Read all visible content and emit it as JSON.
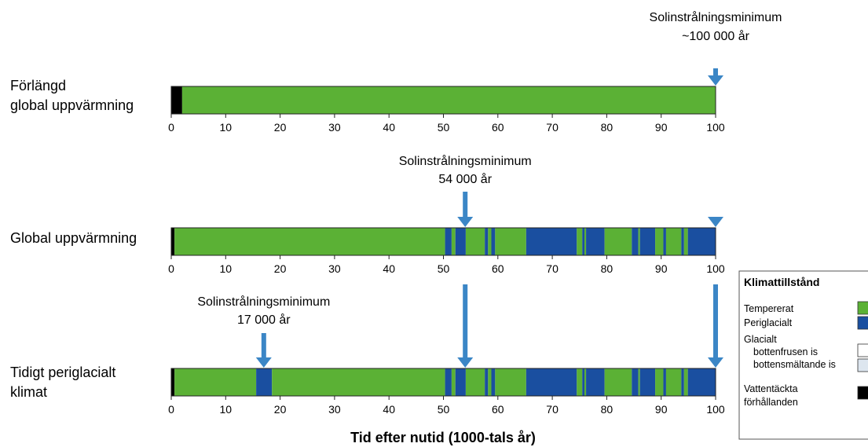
{
  "colors": {
    "temperate": "#5BB135",
    "periglacial": "#1A4FA0",
    "cold_glacial": "#FFFFFF",
    "warm_glacial": "#DDE6EF",
    "submerged": "#000000",
    "arrow": "#3B86C6"
  },
  "chart_data": {
    "type": "bar",
    "xlabel": "Tid efter nutid (1000-tals år)",
    "xlim": [
      0,
      100
    ],
    "xticks": [
      "0",
      "10",
      "20",
      "30",
      "40",
      "50",
      "60",
      "70",
      "80",
      "90",
      "100"
    ],
    "rows": [
      {
        "label_lines": [
          "Förlängd",
          "global uppvärmning"
        ],
        "segments": [
          {
            "start": 0,
            "end": 2,
            "state": "submerged"
          },
          {
            "start": 2,
            "end": 100,
            "state": "temperate"
          }
        ],
        "arrows": [
          100
        ]
      },
      {
        "label_lines": [
          "Global uppvärmning"
        ],
        "segments": [
          {
            "start": 0,
            "end": 0.6,
            "state": "submerged"
          },
          {
            "start": 0.6,
            "end": 50.3,
            "state": "temperate"
          },
          {
            "start": 50.3,
            "end": 51.5,
            "state": "periglacial"
          },
          {
            "start": 51.5,
            "end": 52.2,
            "state": "temperate"
          },
          {
            "start": 52.2,
            "end": 54.1,
            "state": "periglacial"
          },
          {
            "start": 54.1,
            "end": 57.6,
            "state": "temperate"
          },
          {
            "start": 57.6,
            "end": 58.2,
            "state": "periglacial"
          },
          {
            "start": 58.2,
            "end": 58.8,
            "state": "temperate"
          },
          {
            "start": 58.8,
            "end": 59.5,
            "state": "periglacial"
          },
          {
            "start": 59.5,
            "end": 65.2,
            "state": "temperate"
          },
          {
            "start": 65.2,
            "end": 74.5,
            "state": "periglacial"
          },
          {
            "start": 74.5,
            "end": 75.5,
            "state": "temperate"
          },
          {
            "start": 75.5,
            "end": 75.9,
            "state": "periglacial"
          },
          {
            "start": 75.9,
            "end": 76.2,
            "state": "temperate"
          },
          {
            "start": 76.2,
            "end": 79.6,
            "state": "periglacial"
          },
          {
            "start": 79.6,
            "end": 84.6,
            "state": "temperate"
          },
          {
            "start": 84.6,
            "end": 85.8,
            "state": "periglacial"
          },
          {
            "start": 85.8,
            "end": 86.1,
            "state": "temperate"
          },
          {
            "start": 86.1,
            "end": 88.9,
            "state": "periglacial"
          },
          {
            "start": 88.9,
            "end": 90.4,
            "state": "temperate"
          },
          {
            "start": 90.4,
            "end": 90.9,
            "state": "periglacial"
          },
          {
            "start": 90.9,
            "end": 93.7,
            "state": "temperate"
          },
          {
            "start": 93.7,
            "end": 94.2,
            "state": "periglacial"
          },
          {
            "start": 94.2,
            "end": 94.9,
            "state": "temperate"
          },
          {
            "start": 94.9,
            "end": 100,
            "state": "periglacial"
          }
        ],
        "arrows": [
          54,
          100
        ]
      },
      {
        "label_lines": [
          "Tidigt periglacialt",
          "klimat"
        ],
        "segments": [
          {
            "start": 0,
            "end": 0.6,
            "state": "submerged"
          },
          {
            "start": 0.6,
            "end": 15.6,
            "state": "temperate"
          },
          {
            "start": 15.6,
            "end": 18.5,
            "state": "periglacial"
          },
          {
            "start": 18.5,
            "end": 50.3,
            "state": "temperate"
          },
          {
            "start": 50.3,
            "end": 51.5,
            "state": "periglacial"
          },
          {
            "start": 51.5,
            "end": 52.2,
            "state": "temperate"
          },
          {
            "start": 52.2,
            "end": 54.1,
            "state": "periglacial"
          },
          {
            "start": 54.1,
            "end": 57.6,
            "state": "temperate"
          },
          {
            "start": 57.6,
            "end": 58.2,
            "state": "periglacial"
          },
          {
            "start": 58.2,
            "end": 58.8,
            "state": "temperate"
          },
          {
            "start": 58.8,
            "end": 59.5,
            "state": "periglacial"
          },
          {
            "start": 59.5,
            "end": 65.2,
            "state": "temperate"
          },
          {
            "start": 65.2,
            "end": 74.5,
            "state": "periglacial"
          },
          {
            "start": 74.5,
            "end": 75.5,
            "state": "temperate"
          },
          {
            "start": 75.5,
            "end": 75.9,
            "state": "periglacial"
          },
          {
            "start": 75.9,
            "end": 76.2,
            "state": "temperate"
          },
          {
            "start": 76.2,
            "end": 79.6,
            "state": "periglacial"
          },
          {
            "start": 79.6,
            "end": 84.6,
            "state": "temperate"
          },
          {
            "start": 84.6,
            "end": 85.8,
            "state": "periglacial"
          },
          {
            "start": 85.8,
            "end": 86.1,
            "state": "temperate"
          },
          {
            "start": 86.1,
            "end": 88.9,
            "state": "periglacial"
          },
          {
            "start": 88.9,
            "end": 90.4,
            "state": "temperate"
          },
          {
            "start": 90.4,
            "end": 90.9,
            "state": "periglacial"
          },
          {
            "start": 90.9,
            "end": 93.7,
            "state": "temperate"
          },
          {
            "start": 93.7,
            "end": 94.2,
            "state": "periglacial"
          },
          {
            "start": 94.2,
            "end": 94.9,
            "state": "temperate"
          },
          {
            "start": 94.9,
            "end": 100,
            "state": "periglacial"
          }
        ],
        "arrows": [
          17,
          54,
          100
        ]
      }
    ],
    "annotations": [
      {
        "row": 0,
        "x": 100,
        "lines": [
          "Solinstrålningsminimum",
          "~100 000 år"
        ]
      },
      {
        "row": 1,
        "x": 54,
        "lines": [
          "Solinstrålningsminimum",
          "54 000 år"
        ]
      },
      {
        "row": 2,
        "x": 17,
        "lines": [
          "Solinstrålningsminimum",
          "17 000 år"
        ]
      }
    ],
    "legend": {
      "position": "right",
      "title": "Klimattillstånd",
      "items": [
        {
          "label": "Tempererat",
          "state": "temperate"
        },
        {
          "label": "Periglacialt",
          "state": "periglacial"
        },
        {
          "label": "Glacialt",
          "state": null
        },
        {
          "label": "bottenfrusen is",
          "state": "cold_glacial"
        },
        {
          "label": "bottensmältande is",
          "state": "warm_glacial"
        },
        {
          "label": "Vattentäckta",
          "state": null
        },
        {
          "label": "förhållanden",
          "state": "submerged"
        }
      ]
    }
  }
}
